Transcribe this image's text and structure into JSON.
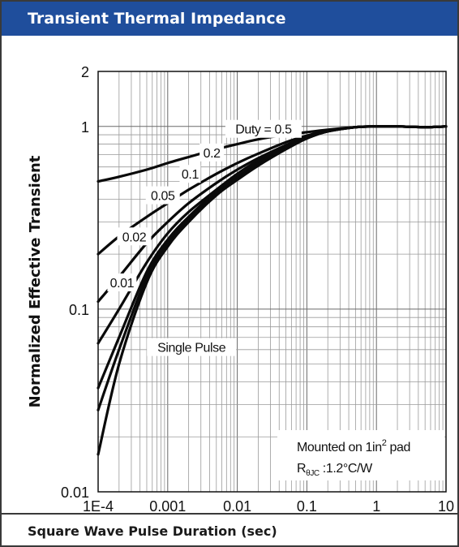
{
  "header": {
    "title": "Transient Thermal Impedance"
  },
  "footer": {
    "xlabel": "Square Wave Pulse Duration (sec)"
  },
  "chart_data": {
    "type": "line",
    "title": "Transient Thermal Impedance",
    "xlabel": "Square Wave Pulse Duration (sec)",
    "ylabel": "Normalized Effective Transient",
    "xscale": "log",
    "yscale": "log",
    "xlim": [
      0.0001,
      10
    ],
    "ylim": [
      0.01,
      2
    ],
    "grid": true,
    "x_tick_labels": [
      "1E-4",
      "0.001",
      "0.01",
      "0.1",
      "1",
      "10"
    ],
    "y_tick_labels": [
      "0.01",
      "0.1",
      "1",
      "2"
    ],
    "duty_prefix": "Duty = ",
    "annotations": [
      "Mounted on 1in",
      "2",
      " pad",
      "R",
      "θJC",
      " :1.2°C/W"
    ],
    "series": [
      {
        "name": "0.5",
        "x": [
          0.0001,
          0.0002,
          0.0005,
          0.001,
          0.002,
          0.005,
          0.01,
          0.02,
          0.05,
          0.1,
          0.2,
          0.5,
          1,
          2,
          5,
          10
        ],
        "y": [
          0.5,
          0.53,
          0.58,
          0.63,
          0.68,
          0.75,
          0.8,
          0.85,
          0.9,
          0.93,
          0.96,
          0.99,
          1.0,
          1.0,
          0.99,
          1.0
        ]
      },
      {
        "name": "0.2",
        "x": [
          0.0001,
          0.0002,
          0.0005,
          0.001,
          0.002,
          0.005,
          0.01,
          0.02,
          0.05,
          0.1,
          0.2,
          0.5,
          1,
          2,
          5,
          10
        ],
        "y": [
          0.2,
          0.25,
          0.32,
          0.38,
          0.45,
          0.55,
          0.63,
          0.71,
          0.82,
          0.89,
          0.95,
          0.99,
          1.0,
          1.0,
          0.99,
          1.0
        ]
      },
      {
        "name": "0.1",
        "x": [
          0.0001,
          0.0002,
          0.0005,
          0.001,
          0.002,
          0.005,
          0.01,
          0.02,
          0.05,
          0.1,
          0.2,
          0.5,
          1,
          2,
          5,
          10
        ],
        "y": [
          0.11,
          0.15,
          0.23,
          0.3,
          0.38,
          0.49,
          0.58,
          0.67,
          0.79,
          0.88,
          0.94,
          0.99,
          1.0,
          1.0,
          0.99,
          1.0
        ]
      },
      {
        "name": "0.05",
        "x": [
          0.0001,
          0.0002,
          0.0005,
          0.001,
          0.002,
          0.005,
          0.01,
          0.02,
          0.05,
          0.1,
          0.2,
          0.5,
          1,
          2,
          5,
          10
        ],
        "y": [
          0.065,
          0.1,
          0.18,
          0.26,
          0.34,
          0.45,
          0.55,
          0.65,
          0.77,
          0.87,
          0.94,
          0.99,
          1.0,
          1.0,
          0.99,
          1.0
        ]
      },
      {
        "name": "0.02",
        "x": [
          0.0001,
          0.0002,
          0.0005,
          0.001,
          0.002,
          0.005,
          0.01,
          0.02,
          0.05,
          0.1,
          0.2,
          0.5,
          1,
          2,
          5,
          10
        ],
        "y": [
          0.037,
          0.07,
          0.16,
          0.24,
          0.32,
          0.44,
          0.53,
          0.63,
          0.76,
          0.87,
          0.94,
          0.99,
          1.0,
          1.0,
          0.99,
          1.0
        ]
      },
      {
        "name": "0.01",
        "x": [
          0.0001,
          0.0002,
          0.0005,
          0.001,
          0.002,
          0.005,
          0.01,
          0.02,
          0.05,
          0.1,
          0.2,
          0.5,
          1,
          2,
          5,
          10
        ],
        "y": [
          0.028,
          0.06,
          0.15,
          0.23,
          0.31,
          0.43,
          0.52,
          0.62,
          0.76,
          0.86,
          0.94,
          0.99,
          1.0,
          1.0,
          0.99,
          1.0
        ]
      },
      {
        "name": "Single Pulse",
        "x": [
          0.0001,
          0.0002,
          0.0005,
          0.001,
          0.002,
          0.005,
          0.01,
          0.02,
          0.05,
          0.1,
          0.2,
          0.5,
          1,
          2,
          5,
          10
        ],
        "y": [
          0.016,
          0.05,
          0.14,
          0.22,
          0.3,
          0.42,
          0.51,
          0.61,
          0.75,
          0.86,
          0.94,
          0.99,
          1.0,
          1.0,
          0.99,
          1.0
        ]
      }
    ]
  }
}
